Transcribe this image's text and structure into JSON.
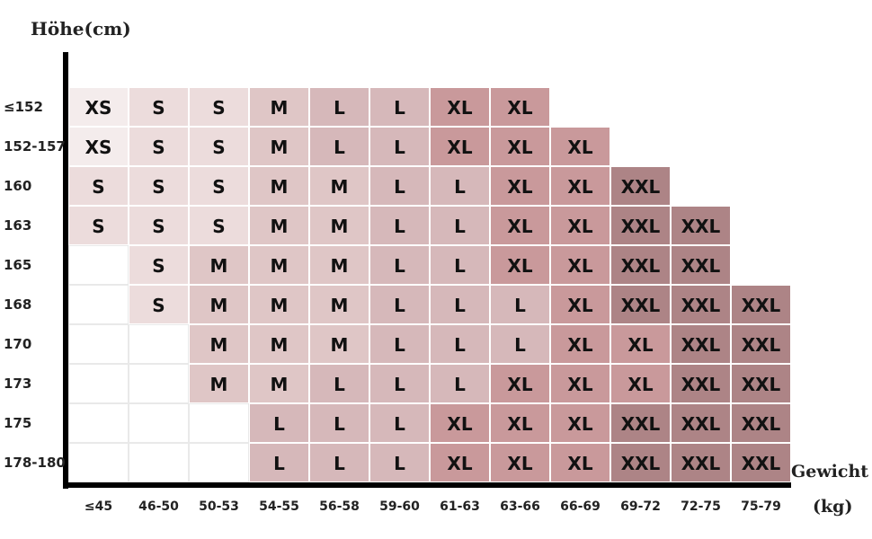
{
  "chart_data": {
    "type": "table",
    "ylabel": "Höhe(cm)",
    "xlabel_line1": "Gewicht",
    "xlabel_line2": "(kg)",
    "columns": [
      "≤45",
      "46-50",
      "50-53",
      "54-55",
      "56-58",
      "59-60",
      "61-63",
      "63-66",
      "66-69",
      "69-72",
      "72-75",
      "75-79"
    ],
    "rows": [
      "≤152",
      "152-157",
      "160",
      "163",
      "165",
      "168",
      "170",
      "173",
      "175",
      "178-180"
    ],
    "cells": [
      [
        "XS",
        "S",
        "S",
        "M",
        "L",
        "L",
        "XL",
        "XL",
        null,
        null,
        null,
        null
      ],
      [
        "XS",
        "S",
        "S",
        "M",
        "L",
        "L",
        "XL",
        "XL",
        "XL",
        null,
        null,
        null
      ],
      [
        "S",
        "S",
        "S",
        "M",
        "M",
        "L",
        "L",
        "XL",
        "XL",
        "XXL",
        null,
        null
      ],
      [
        "S",
        "S",
        "S",
        "M",
        "M",
        "L",
        "L",
        "XL",
        "XL",
        "XXL",
        "XXL",
        null
      ],
      [
        "",
        "S",
        "M",
        "M",
        "M",
        "L",
        "L",
        "XL",
        "XL",
        "XXL",
        "XXL",
        null
      ],
      [
        "",
        "S",
        "M",
        "M",
        "M",
        "L",
        "L",
        "L",
        "XL",
        "XXL",
        "XXL",
        "XXL"
      ],
      [
        "",
        "",
        "M",
        "M",
        "M",
        "L",
        "L",
        "L",
        "XL",
        "XL",
        "XXL",
        "XXL"
      ],
      [
        "",
        "",
        "M",
        "M",
        "L",
        "L",
        "L",
        "XL",
        "XL",
        "XL",
        "XXL",
        "XXL"
      ],
      [
        "",
        "",
        "",
        "L",
        "L",
        "L",
        "XL",
        "XL",
        "XL",
        "XXL",
        "XXL",
        "XXL"
      ],
      [
        "",
        "",
        "",
        "L",
        "L",
        "L",
        "XL",
        "XL",
        "XL",
        "XXL",
        "XXL",
        "XXL"
      ]
    ],
    "size_colors": {
      "XS": "#f4ecec",
      "S": "#ecdcdc",
      "M": "#dfc6c6",
      "L": "#d6b8ba",
      "XL": "#c9999b",
      "XXL": "#ad8486",
      "blank": "#ffffff"
    },
    "grid": true
  }
}
